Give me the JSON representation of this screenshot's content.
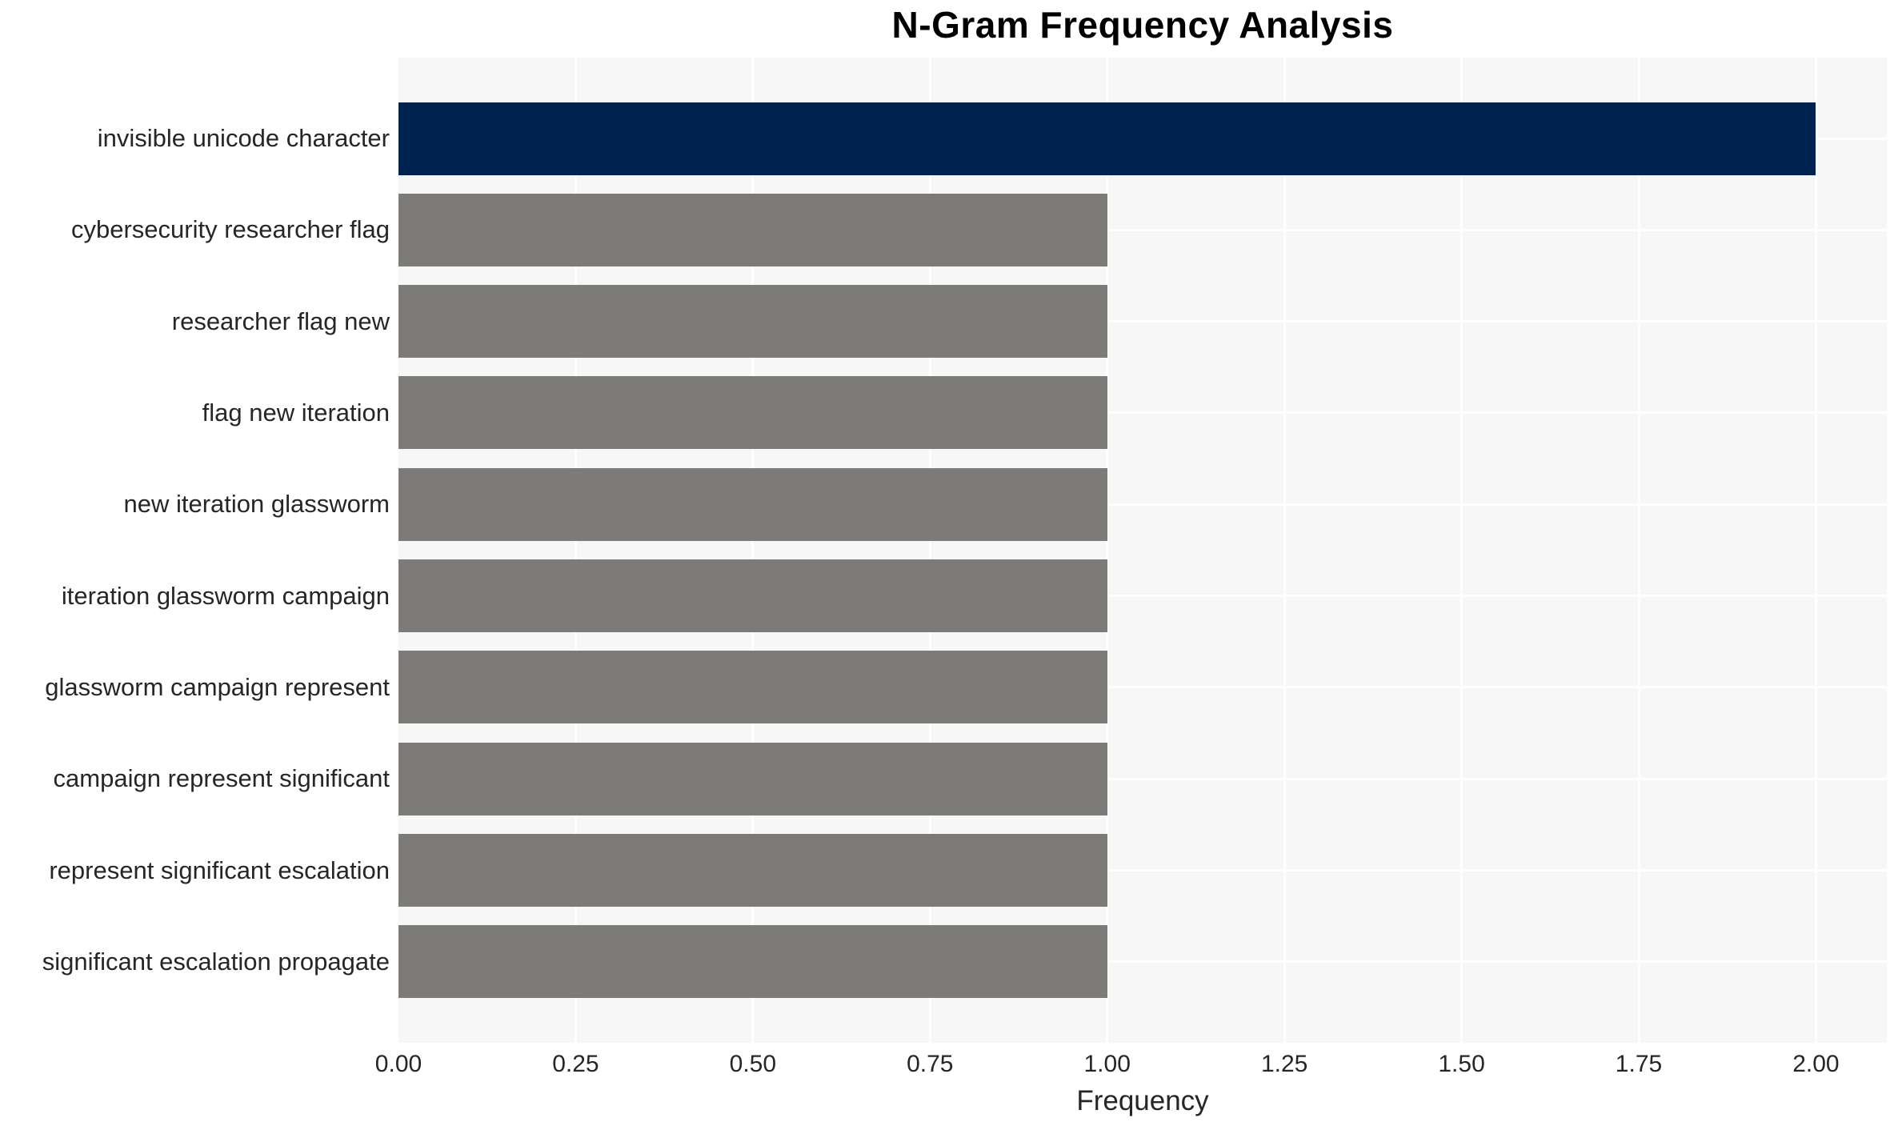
{
  "chart_data": {
    "type": "bar",
    "orientation": "horizontal",
    "title": "N-Gram Frequency Analysis",
    "xlabel": "Frequency",
    "ylabel": "",
    "categories": [
      "invisible unicode character",
      "cybersecurity researcher flag",
      "researcher flag new",
      "flag new iteration",
      "new iteration glassworm",
      "iteration glassworm campaign",
      "glassworm campaign represent",
      "campaign represent significant",
      "represent significant escalation",
      "significant escalation propagate"
    ],
    "values": [
      2.0,
      1.0,
      1.0,
      1.0,
      1.0,
      1.0,
      1.0,
      1.0,
      1.0,
      1.0
    ],
    "bar_colors": [
      "#00224e",
      "#7c7b78",
      "#7c7b78",
      "#7c7b78",
      "#7c7b78",
      "#7c7b78",
      "#7c7b78",
      "#7c7b78",
      "#7c7b78",
      "#7c7b78"
    ],
    "xlim": [
      0,
      2.1
    ],
    "xtick_values": [
      0.0,
      0.25,
      0.5,
      0.75,
      1.0,
      1.25,
      1.5,
      1.75,
      2.0
    ],
    "xtick_labels": [
      "0.00",
      "0.25",
      "0.50",
      "0.75",
      "1.00",
      "1.25",
      "1.50",
      "1.75",
      "2.00"
    ],
    "grid": true,
    "legend": false,
    "colors": {
      "plot_background": "#f7f7f7",
      "gridline": "#ffffff",
      "bar_highlight": "#00224e",
      "bar_default": "#7c7b78",
      "text": "#262626",
      "title_text": "#000000",
      "figure_background": "#ffffff"
    }
  }
}
